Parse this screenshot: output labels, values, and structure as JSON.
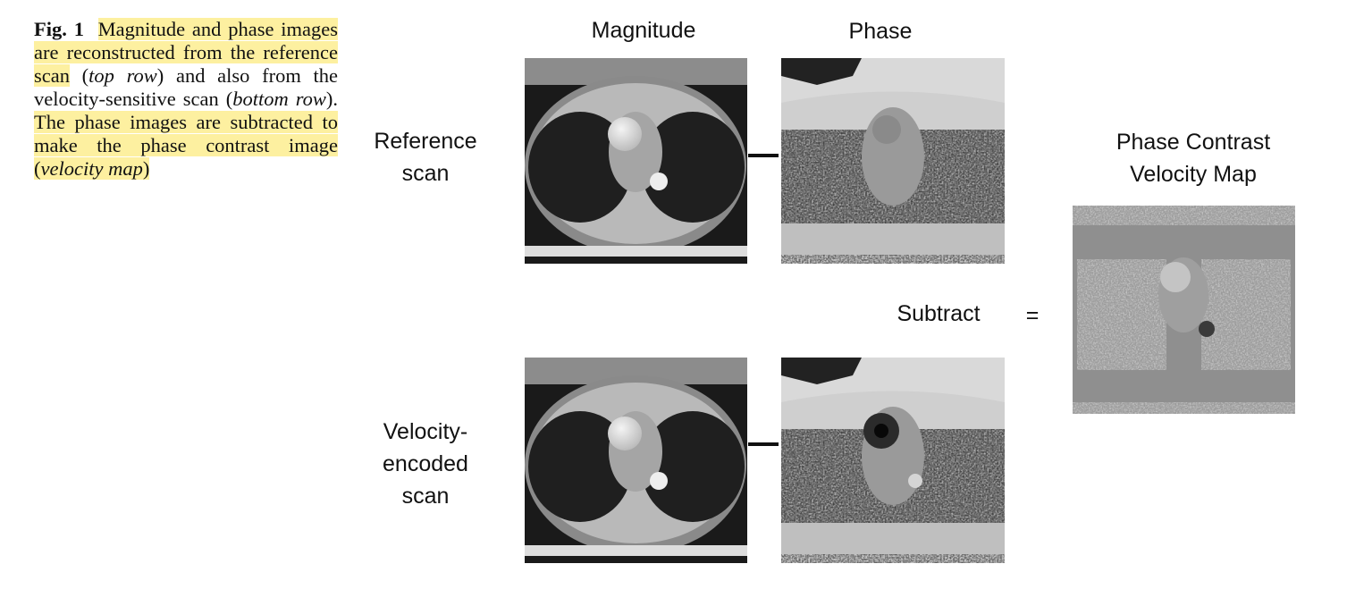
{
  "caption": {
    "fig_label": "Fig. 1",
    "part1": "Magnitude and phase images are reconstructed from the reference scan",
    "part2": " (",
    "part3": "top row",
    "part4": ") and also from the velocity-sensitive scan (",
    "part5": "bottom row",
    "part6": "). ",
    "part7": "The phase images are subtracted to make the phase contrast image",
    "part8": " (",
    "part9": "velocity map",
    "part10": ")"
  },
  "figure": {
    "col_magnitude": "Magnitude",
    "col_phase": "Phase",
    "row_reference_line1": "Reference",
    "row_reference_line2": "scan",
    "row_velocity_line1": "Velocity-",
    "row_velocity_line2": "encoded",
    "row_velocity_line3": "scan",
    "subtract_label": "Subtract",
    "equals_label": "=",
    "result_line1": "Phase Contrast",
    "result_line2": "Velocity Map"
  },
  "colors": {
    "highlight": "#fdf0a0",
    "text": "#111111"
  }
}
